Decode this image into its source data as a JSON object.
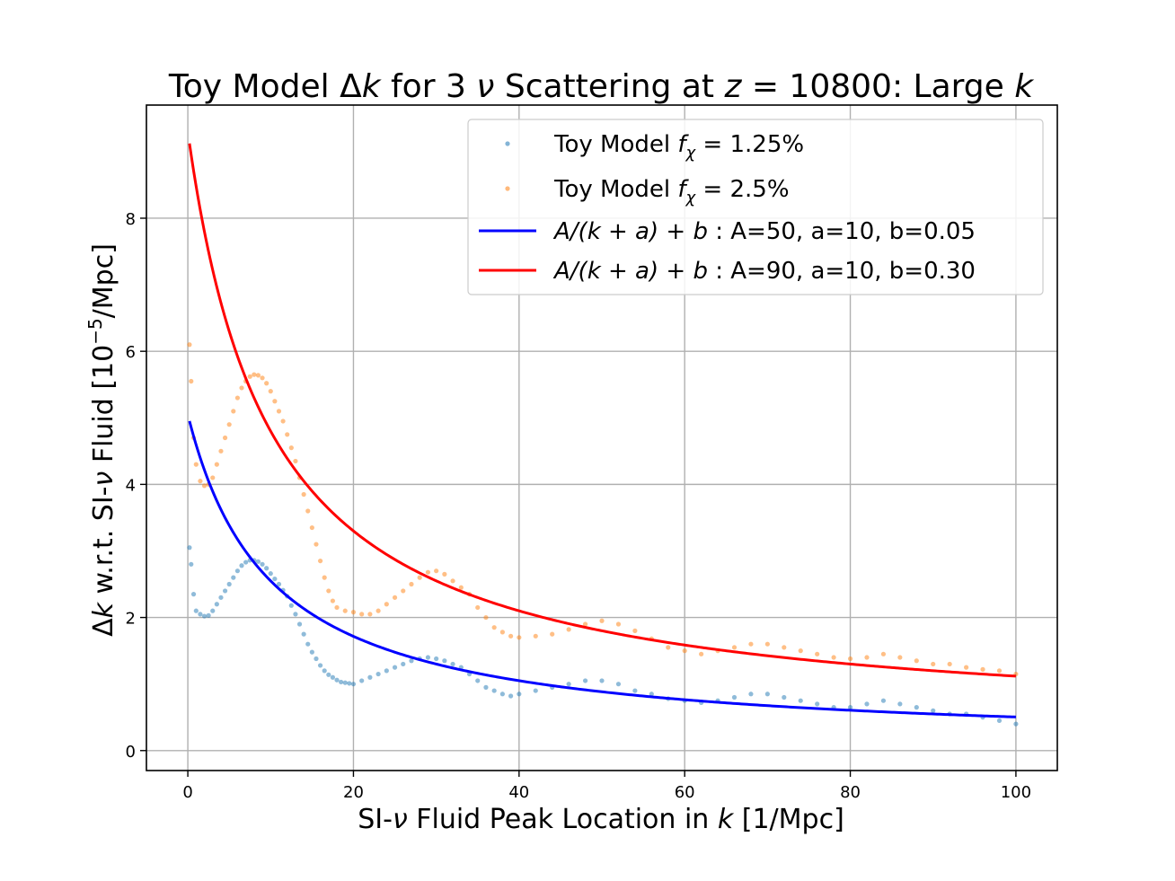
{
  "chart_data": {
    "type": "scatter",
    "title": {
      "prefix": "Toy Model Δ",
      "k1": "k",
      "mid": " for 3 ",
      "nu": "ν",
      "mid2": " Scattering at ",
      "z": "z",
      "zval": " = 10800: Large ",
      "k2": "k"
    },
    "xlabel": {
      "pre": "SI-",
      "nu": "ν",
      "mid": " Fluid Peak Location in ",
      "k": "k",
      "post": " [1/Mpc]"
    },
    "ylabel": {
      "delta": "Δ",
      "k": "k",
      "mid": " w.r.t. SI-",
      "nu": "ν",
      "post1": " Fluid [10",
      "sup": "−5",
      "post2": "/Mpc]"
    },
    "xlim": [
      -5,
      105
    ],
    "ylim": [
      -0.3,
      9.7
    ],
    "xticks": [
      0,
      20,
      40,
      60,
      80,
      100
    ],
    "yticks": [
      0,
      2,
      4,
      6,
      8
    ],
    "grid": true,
    "legend_position": "upper right",
    "scatter_series": [
      {
        "name": "Toy Model f_χ = 1.25%",
        "label_pre": "Toy Model ",
        "label_f": "f",
        "label_sub": "χ",
        "label_post": " = 1.25%",
        "color": "#1f77b4",
        "points": [
          [
            0.2,
            3.05
          ],
          [
            0.4,
            2.8
          ],
          [
            0.7,
            2.35
          ],
          [
            1,
            2.1
          ],
          [
            1.5,
            2.05
          ],
          [
            2,
            2.02
          ],
          [
            2.5,
            2.03
          ],
          [
            3,
            2.1
          ],
          [
            3.5,
            2.2
          ],
          [
            4,
            2.3
          ],
          [
            4.5,
            2.4
          ],
          [
            5,
            2.5
          ],
          [
            5.5,
            2.6
          ],
          [
            6,
            2.7
          ],
          [
            6.5,
            2.78
          ],
          [
            7,
            2.83
          ],
          [
            7.5,
            2.86
          ],
          [
            8,
            2.86
          ],
          [
            8.5,
            2.84
          ],
          [
            9,
            2.8
          ],
          [
            9.5,
            2.74
          ],
          [
            10,
            2.66
          ],
          [
            10.5,
            2.58
          ],
          [
            11,
            2.5
          ],
          [
            11.5,
            2.41
          ],
          [
            12,
            2.32
          ],
          [
            12.5,
            2.18
          ],
          [
            13,
            2.05
          ],
          [
            13.5,
            1.9
          ],
          [
            14,
            1.75
          ],
          [
            14.5,
            1.6
          ],
          [
            15,
            1.48
          ],
          [
            15.5,
            1.38
          ],
          [
            16,
            1.28
          ],
          [
            16.5,
            1.2
          ],
          [
            17,
            1.14
          ],
          [
            17.5,
            1.1
          ],
          [
            18,
            1.06
          ],
          [
            18.5,
            1.03
          ],
          [
            19,
            1.02
          ],
          [
            19.5,
            1.01
          ],
          [
            20,
            1.0
          ],
          [
            21,
            1.05
          ],
          [
            22,
            1.1
          ],
          [
            23,
            1.15
          ],
          [
            24,
            1.2
          ],
          [
            25,
            1.25
          ],
          [
            26,
            1.3
          ],
          [
            27,
            1.35
          ],
          [
            28,
            1.38
          ],
          [
            29,
            1.4
          ],
          [
            30,
            1.38
          ],
          [
            31,
            1.35
          ],
          [
            32,
            1.3
          ],
          [
            33,
            1.25
          ],
          [
            34,
            1.15
          ],
          [
            35,
            1.05
          ],
          [
            36,
            0.95
          ],
          [
            37,
            0.9
          ],
          [
            38,
            0.85
          ],
          [
            39,
            0.82
          ],
          [
            40,
            0.85
          ],
          [
            42,
            0.9
          ],
          [
            44,
            0.95
          ],
          [
            46,
            1.0
          ],
          [
            48,
            1.05
          ],
          [
            50,
            1.05
          ],
          [
            52,
            1.0
          ],
          [
            54,
            0.9
          ],
          [
            56,
            0.85
          ],
          [
            58,
            0.78
          ],
          [
            60,
            0.75
          ],
          [
            62,
            0.72
          ],
          [
            64,
            0.75
          ],
          [
            66,
            0.8
          ],
          [
            68,
            0.85
          ],
          [
            70,
            0.85
          ],
          [
            72,
            0.8
          ],
          [
            74,
            0.75
          ],
          [
            76,
            0.7
          ],
          [
            78,
            0.65
          ],
          [
            80,
            0.65
          ],
          [
            82,
            0.7
          ],
          [
            84,
            0.75
          ],
          [
            86,
            0.7
          ],
          [
            88,
            0.65
          ],
          [
            90,
            0.6
          ],
          [
            92,
            0.55
          ],
          [
            94,
            0.55
          ],
          [
            96,
            0.5
          ],
          [
            98,
            0.45
          ],
          [
            100,
            0.4
          ]
        ]
      },
      {
        "name": "Toy Model f_χ = 2.5%",
        "label_pre": "Toy Model ",
        "label_f": "f",
        "label_sub": "χ",
        "label_post": " = 2.5%",
        "color": "#ff7f0e",
        "points": [
          [
            0.2,
            6.1
          ],
          [
            0.4,
            5.55
          ],
          [
            0.7,
            4.7
          ],
          [
            1,
            4.3
          ],
          [
            1.5,
            4.05
          ],
          [
            2,
            3.98
          ],
          [
            2.5,
            4.0
          ],
          [
            3,
            4.1
          ],
          [
            3.5,
            4.3
          ],
          [
            4,
            4.5
          ],
          [
            4.5,
            4.7
          ],
          [
            5,
            4.9
          ],
          [
            5.5,
            5.1
          ],
          [
            6,
            5.3
          ],
          [
            6.5,
            5.45
          ],
          [
            7,
            5.55
          ],
          [
            7.5,
            5.62
          ],
          [
            8,
            5.65
          ],
          [
            8.5,
            5.64
          ],
          [
            9,
            5.6
          ],
          [
            9.5,
            5.52
          ],
          [
            10,
            5.4
          ],
          [
            10.5,
            5.25
          ],
          [
            11,
            5.1
          ],
          [
            11.5,
            4.95
          ],
          [
            12,
            4.75
          ],
          [
            12.5,
            4.55
          ],
          [
            13,
            4.35
          ],
          [
            13.5,
            4.1
          ],
          [
            14,
            3.85
          ],
          [
            14.5,
            3.6
          ],
          [
            15,
            3.35
          ],
          [
            15.5,
            3.1
          ],
          [
            16,
            2.85
          ],
          [
            16.5,
            2.6
          ],
          [
            17,
            2.4
          ],
          [
            17.5,
            2.25
          ],
          [
            18,
            2.15
          ],
          [
            19,
            2.1
          ],
          [
            20,
            2.08
          ],
          [
            21,
            2.05
          ],
          [
            22,
            2.05
          ],
          [
            23,
            2.1
          ],
          [
            24,
            2.2
          ],
          [
            25,
            2.3
          ],
          [
            26,
            2.4
          ],
          [
            27,
            2.5
          ],
          [
            28,
            2.6
          ],
          [
            29,
            2.68
          ],
          [
            30,
            2.7
          ],
          [
            31,
            2.65
          ],
          [
            32,
            2.55
          ],
          [
            33,
            2.45
          ],
          [
            34,
            2.35
          ],
          [
            35,
            2.15
          ],
          [
            36,
            2.0
          ],
          [
            37,
            1.85
          ],
          [
            38,
            1.78
          ],
          [
            39,
            1.72
          ],
          [
            40,
            1.7
          ],
          [
            42,
            1.72
          ],
          [
            44,
            1.75
          ],
          [
            46,
            1.82
          ],
          [
            48,
            1.9
          ],
          [
            50,
            1.95
          ],
          [
            52,
            1.9
          ],
          [
            54,
            1.8
          ],
          [
            56,
            1.68
          ],
          [
            58,
            1.55
          ],
          [
            60,
            1.5
          ],
          [
            62,
            1.45
          ],
          [
            64,
            1.5
          ],
          [
            66,
            1.55
          ],
          [
            68,
            1.6
          ],
          [
            70,
            1.6
          ],
          [
            72,
            1.55
          ],
          [
            74,
            1.5
          ],
          [
            76,
            1.45
          ],
          [
            78,
            1.4
          ],
          [
            80,
            1.38
          ],
          [
            82,
            1.4
          ],
          [
            84,
            1.45
          ],
          [
            86,
            1.4
          ],
          [
            88,
            1.35
          ],
          [
            90,
            1.3
          ],
          [
            92,
            1.3
          ],
          [
            94,
            1.25
          ],
          [
            96,
            1.22
          ],
          [
            98,
            1.2
          ],
          [
            100,
            1.15
          ]
        ]
      }
    ],
    "line_series": [
      {
        "name": "A/(k+a)+b : A=50, a=10, b=0.05",
        "label_expr": "A/(k + a) + b",
        "label_params": " : A=50, a=10, b=0.05",
        "color": "#0000ff",
        "A": 50,
        "a": 10,
        "b": 0.05
      },
      {
        "name": "A/(k+a)+b : A=90, a=10, b=0.30",
        "label_expr": "A/(k + a) + b",
        "label_params": " : A=90, a=10, b=0.30",
        "color": "#ff0000",
        "A": 90,
        "a": 10,
        "b": 0.3
      }
    ],
    "line_x_range": [
      0.2,
      100
    ]
  }
}
